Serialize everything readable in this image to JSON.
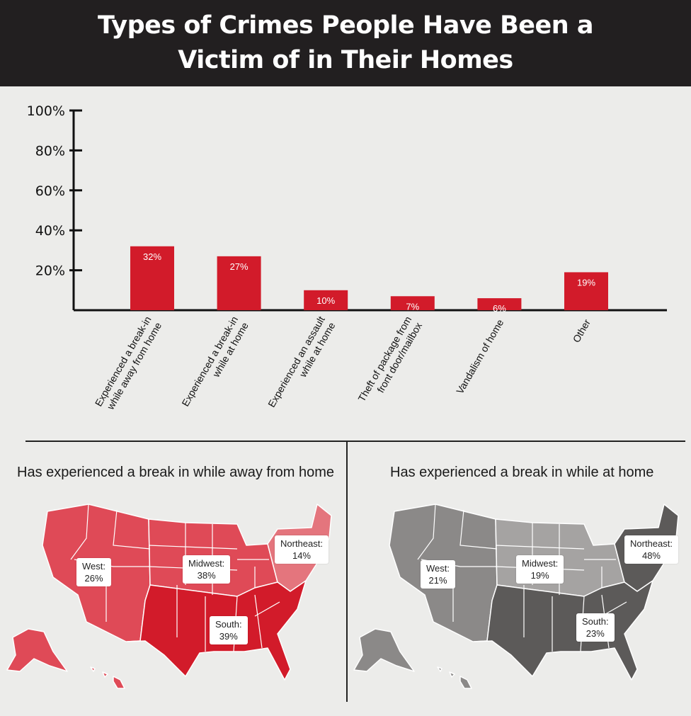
{
  "title_lines": [
    "Types of Crimes People Have Been a",
    "Victim of in Their Homes"
  ],
  "colors": {
    "bar": "#d21b2a",
    "header": "#221f20",
    "red_light": "#e4757d",
    "red_mid": "#df4a57",
    "red_dark": "#d21b2a",
    "gray_light": "#a5a3a2",
    "gray_mid": "#8b8988",
    "gray_dark": "#5c5a59"
  },
  "chart_data": [
    {
      "type": "bar",
      "title": "Types of Crimes People Have Been a Victim of in Their Homes",
      "categories": [
        [
          "Experienced a break-in",
          "while away from home"
        ],
        [
          "Experienced a break-in",
          "while at home"
        ],
        [
          "Experienced an assault",
          "while at home"
        ],
        [
          "Theft of package from",
          "front door/mailbox"
        ],
        [
          "Vandalism of home"
        ],
        [
          "Other"
        ]
      ],
      "values": [
        32,
        27,
        10,
        7,
        6,
        19
      ],
      "value_labels": [
        "32%",
        "27%",
        "10%",
        "7%",
        "6%",
        "19%"
      ],
      "yticks": [
        20,
        40,
        60,
        80,
        100
      ],
      "ytick_labels": [
        "20%",
        "40%",
        "60%",
        "80%",
        "100%"
      ],
      "ylim": [
        0,
        100
      ],
      "grid": false
    },
    {
      "type": "map",
      "title": "Has experienced a break in while away from home",
      "regions": [
        {
          "name": "West:",
          "value": 26,
          "label": "26%"
        },
        {
          "name": "Midwest:",
          "value": 38,
          "label": "38%"
        },
        {
          "name": "Northeast:",
          "value": 14,
          "label": "14%"
        },
        {
          "name": "South:",
          "value": 39,
          "label": "39%"
        }
      ]
    },
    {
      "type": "map",
      "title": "Has experienced a break in while at home",
      "regions": [
        {
          "name": "West:",
          "value": 21,
          "label": "21%"
        },
        {
          "name": "Midwest:",
          "value": 19,
          "label": "19%"
        },
        {
          "name": "Northeast:",
          "value": 48,
          "label": "48%"
        },
        {
          "name": "South:",
          "value": 23,
          "label": "23%"
        }
      ]
    }
  ]
}
